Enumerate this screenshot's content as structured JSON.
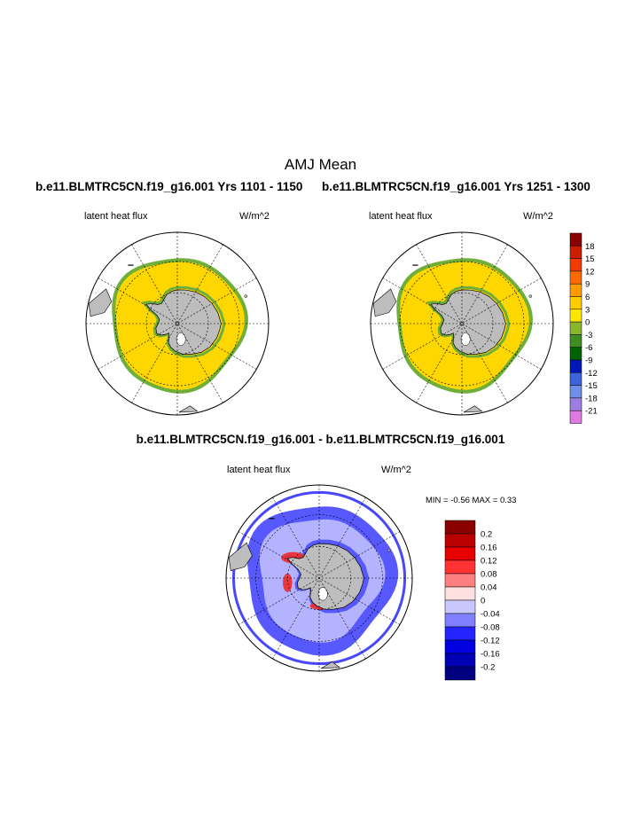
{
  "title": "AMJ Mean",
  "panels": [
    {
      "case": "b.e11.BLMTRC5CN.f19_g16.001  Yrs 1101 - 1150",
      "variable": "latent heat flux",
      "units": "W/m^2"
    },
    {
      "case": "b.e11.BLMTRC5CN.f19_g16.001  Yrs 1251 - 1300",
      "variable": "latent heat flux",
      "units": "W/m^2"
    }
  ],
  "difference": {
    "title": "b.e11.BLMTRC5CN.f19_g16.001 - b.e11.BLMTRC5CN.f19_g16.001",
    "variable": "latent heat flux",
    "units": "W/m^2",
    "minmax": "MIN =  -0.56 MAX =   0.33"
  },
  "colorbar_main": {
    "labels": [
      "18",
      "15",
      "12",
      "9",
      "6",
      "3",
      "0",
      "-3",
      "-6",
      "-9",
      "-12",
      "-15",
      "-18",
      "-21"
    ],
    "colors": [
      "#8b0000",
      "#cd1f00",
      "#f03c00",
      "#ff6a00",
      "#ff9a00",
      "#ffcc00",
      "#ffe600",
      "#8ab62a",
      "#3f8e22",
      "#006400",
      "#0018b8",
      "#3c64dc",
      "#6f8fe8",
      "#9b7ee0",
      "#e07ae0"
    ]
  },
  "colorbar_diff": {
    "labels": [
      "0.2",
      "0.16",
      "0.12",
      "0.08",
      "0.04",
      "0",
      "-0.04",
      "-0.08",
      "-0.12",
      "-0.16",
      "-0.2"
    ],
    "colors": [
      "#8b0000",
      "#bb0000",
      "#e60000",
      "#ff3333",
      "#ff8080",
      "#ffe0e0",
      "#c8c8ff",
      "#7f7fff",
      "#2424ff",
      "#0000e0",
      "#0000b4",
      "#000080"
    ]
  },
  "colors": {
    "land": "#bdbdbd",
    "ocean": "#ffffff",
    "ice_zone": "#ffd700",
    "ice_edge": "#6fae3a"
  }
}
